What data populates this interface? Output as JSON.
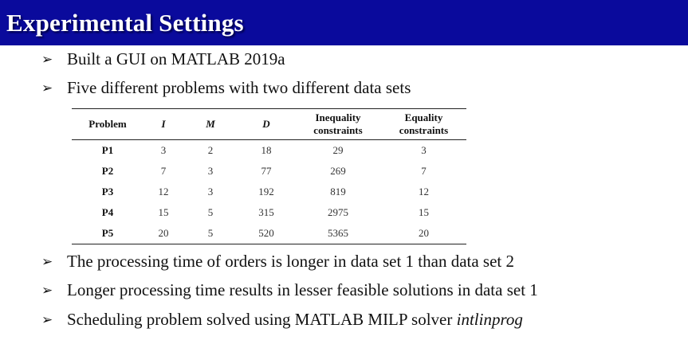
{
  "slide": {
    "title": "Experimental Settings",
    "bullets": [
      "Built a GUI on MATLAB 2019a",
      "Five different problems with two different data sets",
      "The processing time of orders is longer in data set 1 than data set 2",
      "Longer processing time results in lesser feasible solutions in data set 1",
      "Scheduling problem solved using MATLAB MILP solver"
    ],
    "solver_name": "intlinprog",
    "bullet_glyph": "➢"
  },
  "table": {
    "headers": {
      "problem": "Problem",
      "i": "I",
      "m": "M",
      "d": "D",
      "inequality_1": "Inequality",
      "inequality_2": "constraints",
      "equality_1": "Equality",
      "equality_2": "constraints"
    },
    "rows": [
      {
        "problem": "P1",
        "i": "3",
        "m": "2",
        "d": "18",
        "inequality": "29",
        "equality": "3"
      },
      {
        "problem": "P2",
        "i": "7",
        "m": "3",
        "d": "77",
        "inequality": "269",
        "equality": "7"
      },
      {
        "problem": "P3",
        "i": "12",
        "m": "3",
        "d": "192",
        "inequality": "819",
        "equality": "12"
      },
      {
        "problem": "P4",
        "i": "15",
        "m": "5",
        "d": "315",
        "inequality": "2975",
        "equality": "15"
      },
      {
        "problem": "P5",
        "i": "20",
        "m": "5",
        "d": "520",
        "inequality": "5365",
        "equality": "20"
      }
    ]
  },
  "colors": {
    "title_bar": "#0a0a9c",
    "title_text": "#ffffff"
  }
}
